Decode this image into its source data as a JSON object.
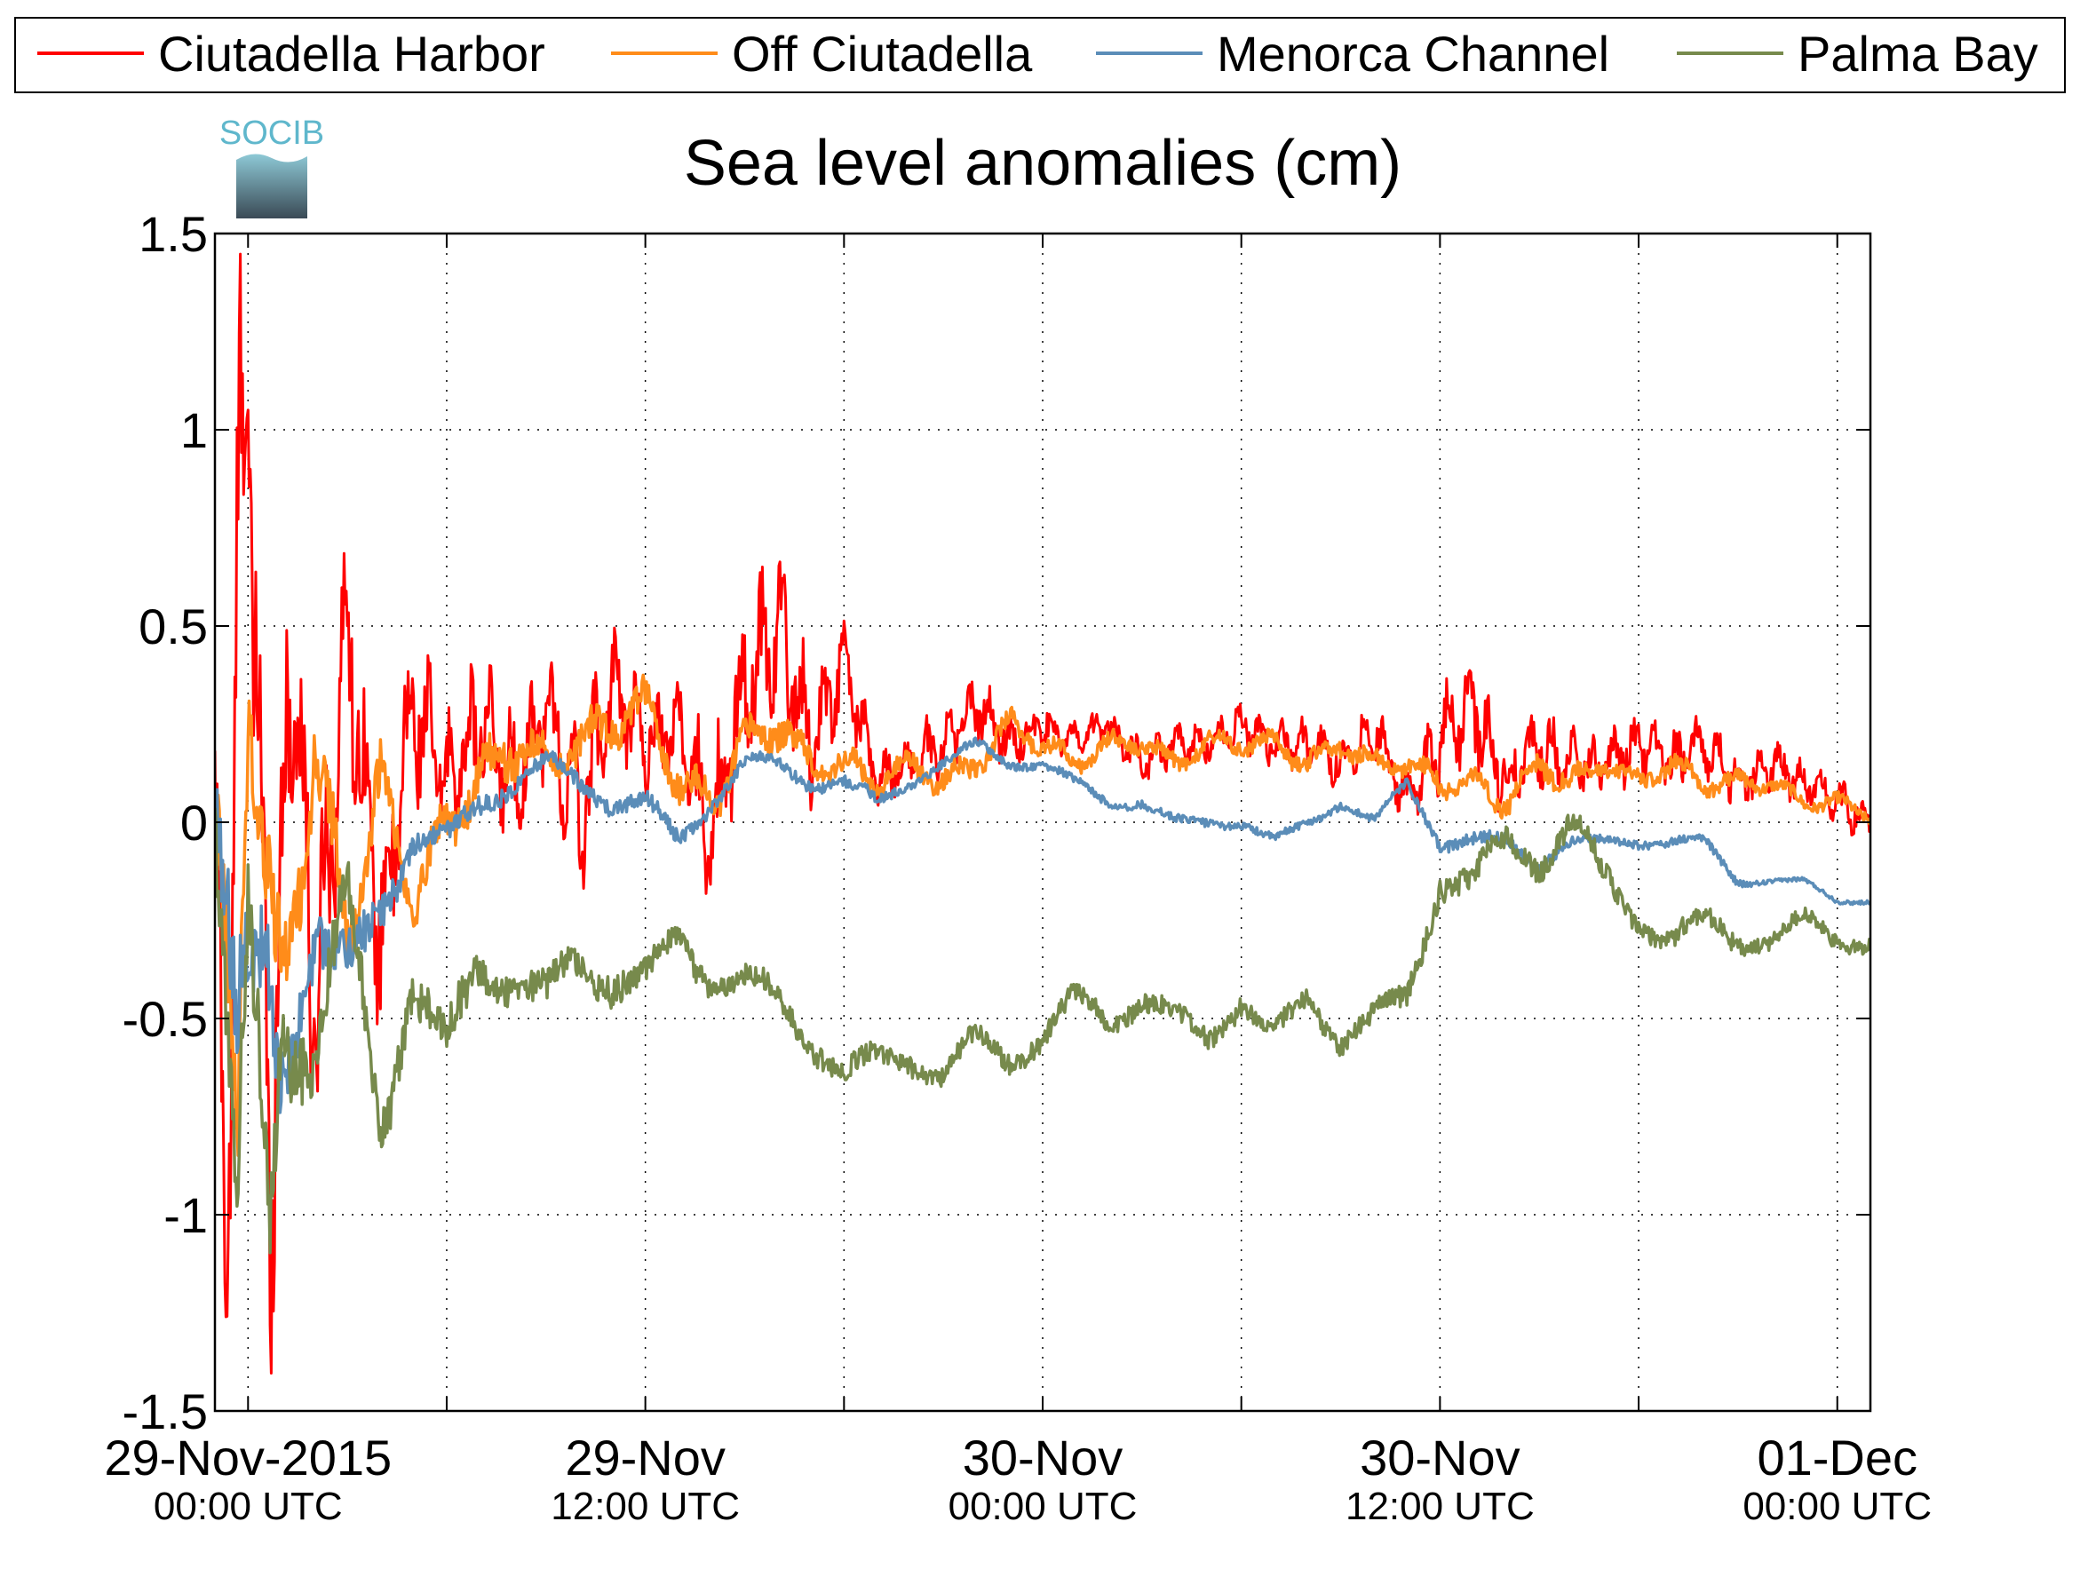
{
  "chart_data": {
    "type": "line",
    "title": "Sea level anomalies (cm)",
    "logo_text": "SOCIB",
    "xlabel": "",
    "ylabel": "",
    "ylim": [
      -1.5,
      1.5
    ],
    "yticks": [
      -1.5,
      -1,
      -0.5,
      0,
      0.5,
      1,
      1.5
    ],
    "ytick_labels": [
      "-1.5",
      "-1",
      "-0.5",
      "0",
      "0.5",
      "1",
      "1.5"
    ],
    "xlim": [
      "2015-11-28T23:00",
      "2015-12-01T01:00"
    ],
    "xticks": [
      "2015-11-29T00:00",
      "2015-11-29T06:00",
      "2015-11-29T12:00",
      "2015-11-29T18:00",
      "2015-11-30T00:00",
      "2015-11-30T06:00",
      "2015-11-30T12:00",
      "2015-11-30T18:00",
      "2015-12-01T00:00"
    ],
    "xtick_labels": [
      {
        "time": "2015-11-29T00:00",
        "line1": "29-Nov-2015",
        "line2": "00:00 UTC"
      },
      {
        "time": "2015-11-29T12:00",
        "line1": "29-Nov",
        "line2": "12:00 UTC"
      },
      {
        "time": "2015-11-30T00:00",
        "line1": "30-Nov",
        "line2": "00:00 UTC"
      },
      {
        "time": "2015-11-30T12:00",
        "line1": "30-Nov",
        "line2": "12:00 UTC"
      },
      {
        "time": "2015-12-01T00:00",
        "line1": "01-Dec",
        "line2": "00:00 UTC"
      }
    ],
    "grid": true,
    "legend_position": "top",
    "series": [
      {
        "name": "Ciutadella Harbor",
        "color": "#ff0000",
        "x": [
          "2015-11-28T23:00",
          "2015-11-28T23:20",
          "2015-11-28T23:40",
          "2015-11-29T00:00",
          "2015-11-29T00:40",
          "2015-11-29T01:20",
          "2015-11-29T02:00",
          "2015-11-29T03:00",
          "2015-11-29T04:00",
          "2015-11-29T05:00",
          "2015-11-29T06:00",
          "2015-11-29T07:00",
          "2015-11-29T08:00",
          "2015-11-29T09:00",
          "2015-11-29T10:00",
          "2015-11-29T11:00",
          "2015-11-29T12:00",
          "2015-11-29T13:00",
          "2015-11-29T14:00",
          "2015-11-29T15:00",
          "2015-11-29T16:00",
          "2015-11-29T17:00",
          "2015-11-29T18:00",
          "2015-11-29T19:00",
          "2015-11-29T20:00",
          "2015-11-29T21:00",
          "2015-11-29T22:00",
          "2015-11-29T23:00",
          "2015-11-30T00:00",
          "2015-11-30T01:00",
          "2015-11-30T02:00",
          "2015-11-30T03:00",
          "2015-11-30T04:00",
          "2015-11-30T05:00",
          "2015-11-30T06:00",
          "2015-11-30T07:00",
          "2015-11-30T08:00",
          "2015-11-30T09:00",
          "2015-11-30T10:00",
          "2015-11-30T11:00",
          "2015-11-30T12:00",
          "2015-11-30T13:00",
          "2015-11-30T14:00",
          "2015-11-30T15:00",
          "2015-11-30T16:00",
          "2015-11-30T17:00",
          "2015-11-30T18:00",
          "2015-11-30T19:00",
          "2015-11-30T20:00",
          "2015-11-30T21:00",
          "2015-11-30T22:00",
          "2015-11-30T23:00",
          "2015-12-01T00:00",
          "2015-12-01T01:00"
        ],
        "y": [
          0.0,
          -1.2,
          0.6,
          1.15,
          -0.9,
          0.5,
          -0.5,
          0.5,
          -0.3,
          0.3,
          0.1,
          0.25,
          0.1,
          0.3,
          0.0,
          0.35,
          0.2,
          0.25,
          -0.05,
          0.35,
          0.5,
          0.2,
          0.4,
          0.1,
          0.15,
          0.2,
          0.3,
          0.2,
          0.25,
          0.2,
          0.25,
          0.15,
          0.2,
          0.2,
          0.25,
          0.2,
          0.2,
          0.15,
          0.25,
          0.05,
          0.2,
          0.3,
          0.1,
          0.2,
          0.15,
          0.15,
          0.2,
          0.15,
          0.2,
          0.1,
          0.15,
          0.1,
          0.05,
          0.0
        ],
        "noise_amplitude": [
          0.5,
          0.6,
          0.8,
          0.7,
          0.6,
          0.5,
          0.45,
          0.35,
          0.3,
          0.25,
          0.2,
          0.2,
          0.2,
          0.2,
          0.25,
          0.2,
          0.15,
          0.15,
          0.25,
          0.25,
          0.25,
          0.2,
          0.15,
          0.08,
          0.1,
          0.1,
          0.1,
          0.08,
          0.07,
          0.06,
          0.06,
          0.06,
          0.06,
          0.06,
          0.07,
          0.07,
          0.07,
          0.08,
          0.1,
          0.1,
          0.15,
          0.15,
          0.12,
          0.12,
          0.1,
          0.1,
          0.1,
          0.1,
          0.1,
          0.08,
          0.08,
          0.07,
          0.07,
          0.06
        ]
      },
      {
        "name": "Off Ciutadella",
        "color": "#ff8c1a",
        "x": [
          "2015-11-28T23:00",
          "2015-11-28T23:40",
          "2015-11-29T00:00",
          "2015-11-29T01:00",
          "2015-11-29T02:00",
          "2015-11-29T03:00",
          "2015-11-29T04:00",
          "2015-11-29T05:00",
          "2015-11-29T06:00",
          "2015-11-29T07:00",
          "2015-11-29T08:00",
          "2015-11-29T09:00",
          "2015-11-29T10:00",
          "2015-11-29T11:00",
          "2015-11-29T12:00",
          "2015-11-29T13:00",
          "2015-11-29T14:00",
          "2015-11-29T15:00",
          "2015-11-29T16:00",
          "2015-11-29T17:00",
          "2015-11-29T18:00",
          "2015-11-29T19:00",
          "2015-11-29T20:00",
          "2015-11-29T21:00",
          "2015-11-29T22:00",
          "2015-11-29T23:00",
          "2015-11-30T00:00",
          "2015-11-30T01:00",
          "2015-11-30T02:00",
          "2015-11-30T03:00",
          "2015-11-30T04:00",
          "2015-11-30T05:00",
          "2015-11-30T06:00",
          "2015-11-30T07:00",
          "2015-11-30T08:00",
          "2015-11-30T09:00",
          "2015-11-30T10:00",
          "2015-11-30T11:00",
          "2015-11-30T12:00",
          "2015-11-30T13:00",
          "2015-11-30T14:00",
          "2015-11-30T15:00",
          "2015-11-30T16:00",
          "2015-11-30T17:00",
          "2015-11-30T18:00",
          "2015-11-30T19:00",
          "2015-11-30T20:00",
          "2015-11-30T21:00",
          "2015-11-30T22:00",
          "2015-11-30T23:00",
          "2015-12-01T00:00",
          "2015-12-01T01:00"
        ],
        "y": [
          0.0,
          -0.9,
          0.4,
          -0.5,
          0.2,
          -0.3,
          0.1,
          -0.2,
          0.0,
          0.1,
          0.2,
          0.15,
          0.2,
          0.25,
          0.3,
          0.1,
          0.05,
          0.2,
          0.25,
          0.15,
          0.15,
          0.1,
          0.15,
          0.1,
          0.15,
          0.25,
          0.2,
          0.15,
          0.2,
          0.2,
          0.15,
          0.2,
          0.2,
          0.2,
          0.15,
          0.2,
          0.15,
          0.15,
          0.1,
          0.1,
          0.05,
          0.15,
          0.1,
          0.15,
          0.1,
          0.15,
          0.1,
          0.1,
          0.1,
          0.05,
          0.05,
          0.02
        ],
        "noise_amplitude": [
          0.3,
          0.3,
          0.3,
          0.25,
          0.2,
          0.15,
          0.12,
          0.1,
          0.1,
          0.1,
          0.1,
          0.08,
          0.08,
          0.08,
          0.08,
          0.08,
          0.08,
          0.08,
          0.08,
          0.06,
          0.06,
          0.05,
          0.05,
          0.05,
          0.05,
          0.05,
          0.04,
          0.04,
          0.04,
          0.04,
          0.04,
          0.04,
          0.04,
          0.04,
          0.04,
          0.04,
          0.04,
          0.04,
          0.05,
          0.05,
          0.05,
          0.05,
          0.05,
          0.04,
          0.04,
          0.04,
          0.04,
          0.04,
          0.03,
          0.03,
          0.03,
          0.03
        ]
      },
      {
        "name": "Menorca Channel",
        "color": "#5b8db8",
        "x": [
          "2015-11-28T23:00",
          "2015-11-28T23:40",
          "2015-11-29T00:30",
          "2015-11-29T01:00",
          "2015-11-29T02:00",
          "2015-11-29T03:00",
          "2015-11-29T04:00",
          "2015-11-29T05:00",
          "2015-11-29T06:00",
          "2015-11-29T07:00",
          "2015-11-29T08:00",
          "2015-11-29T09:00",
          "2015-11-29T10:00",
          "2015-11-29T11:00",
          "2015-11-29T12:00",
          "2015-11-29T13:00",
          "2015-11-29T14:00",
          "2015-11-29T15:00",
          "2015-11-29T16:00",
          "2015-11-29T17:00",
          "2015-11-29T18:00",
          "2015-11-29T19:00",
          "2015-11-29T20:00",
          "2015-11-29T21:00",
          "2015-11-29T22:00",
          "2015-11-29T23:00",
          "2015-11-30T00:00",
          "2015-11-30T01:00",
          "2015-11-30T02:00",
          "2015-11-30T03:00",
          "2015-11-30T04:00",
          "2015-11-30T05:00",
          "2015-11-30T06:00",
          "2015-11-30T07:00",
          "2015-11-30T08:00",
          "2015-11-30T09:00",
          "2015-11-30T10:00",
          "2015-11-30T11:00",
          "2015-11-30T12:00",
          "2015-11-30T13:00",
          "2015-11-30T14:00",
          "2015-11-30T15:00",
          "2015-11-30T16:00",
          "2015-11-30T17:00",
          "2015-11-30T18:00",
          "2015-11-30T19:00",
          "2015-11-30T20:00",
          "2015-11-30T21:00",
          "2015-11-30T22:00",
          "2015-11-30T23:00",
          "2015-12-01T00:00",
          "2015-12-01T01:00"
        ],
        "y": [
          0.0,
          -0.6,
          -0.3,
          -0.6,
          -0.3,
          -0.4,
          -0.2,
          -0.05,
          -0.05,
          0.05,
          0.1,
          0.15,
          0.1,
          0.05,
          0.05,
          -0.05,
          0.05,
          0.15,
          0.15,
          0.1,
          0.1,
          0.05,
          0.1,
          0.15,
          0.2,
          0.15,
          0.15,
          0.1,
          0.05,
          0.05,
          0.0,
          0.0,
          0.0,
          -0.05,
          0.0,
          0.05,
          0.0,
          0.1,
          -0.05,
          -0.05,
          -0.05,
          -0.1,
          -0.05,
          -0.05,
          -0.05,
          -0.05,
          -0.05,
          -0.15,
          -0.15,
          -0.15,
          -0.2,
          -0.2
        ],
        "noise_amplitude": [
          0.25,
          0.3,
          0.25,
          0.2,
          0.15,
          0.12,
          0.1,
          0.06,
          0.05,
          0.05,
          0.04,
          0.04,
          0.04,
          0.04,
          0.04,
          0.04,
          0.03,
          0.03,
          0.03,
          0.03,
          0.03,
          0.03,
          0.02,
          0.02,
          0.02,
          0.02,
          0.02,
          0.02,
          0.02,
          0.02,
          0.02,
          0.02,
          0.02,
          0.02,
          0.02,
          0.02,
          0.02,
          0.02,
          0.03,
          0.03,
          0.03,
          0.03,
          0.02,
          0.02,
          0.02,
          0.02,
          0.02,
          0.02,
          0.01,
          0.01,
          0.01,
          0.01
        ]
      },
      {
        "name": "Palma Bay",
        "color": "#778a4c",
        "x": [
          "2015-11-28T23:00",
          "2015-11-28T23:40",
          "2015-11-29T00:00",
          "2015-11-29T00:40",
          "2015-11-29T01:00",
          "2015-11-29T02:00",
          "2015-11-29T03:00",
          "2015-11-29T04:00",
          "2015-11-29T05:00",
          "2015-11-29T06:00",
          "2015-11-29T07:00",
          "2015-11-29T08:00",
          "2015-11-29T09:00",
          "2015-11-29T10:00",
          "2015-11-29T11:00",
          "2015-11-29T12:00",
          "2015-11-29T13:00",
          "2015-11-29T14:00",
          "2015-11-29T15:00",
          "2015-11-29T16:00",
          "2015-11-29T17:00",
          "2015-11-29T18:00",
          "2015-11-29T19:00",
          "2015-11-29T20:00",
          "2015-11-29T21:00",
          "2015-11-29T22:00",
          "2015-11-29T23:00",
          "2015-11-30T00:00",
          "2015-11-30T01:00",
          "2015-11-30T02:00",
          "2015-11-30T03:00",
          "2015-11-30T04:00",
          "2015-11-30T05:00",
          "2015-11-30T06:00",
          "2015-11-30T07:00",
          "2015-11-30T08:00",
          "2015-11-30T09:00",
          "2015-11-30T10:00",
          "2015-11-30T11:00",
          "2015-11-30T12:00",
          "2015-11-30T13:00",
          "2015-11-30T14:00",
          "2015-11-30T15:00",
          "2015-11-30T16:00",
          "2015-11-30T17:00",
          "2015-11-30T18:00",
          "2015-11-30T19:00",
          "2015-11-30T20:00",
          "2015-11-30T21:00",
          "2015-11-30T22:00",
          "2015-11-30T23:00",
          "2015-12-01T00:00",
          "2015-12-01T01:00"
        ],
        "y": [
          0.0,
          -1.05,
          -0.3,
          -0.95,
          -0.5,
          -0.6,
          -0.2,
          -0.75,
          -0.4,
          -0.6,
          -0.35,
          -0.4,
          -0.45,
          -0.35,
          -0.4,
          -0.4,
          -0.3,
          -0.4,
          -0.4,
          -0.45,
          -0.55,
          -0.65,
          -0.6,
          -0.6,
          -0.65,
          -0.55,
          -0.6,
          -0.55,
          -0.45,
          -0.5,
          -0.45,
          -0.5,
          -0.55,
          -0.45,
          -0.55,
          -0.45,
          -0.55,
          -0.5,
          -0.45,
          -0.15,
          -0.15,
          -0.05,
          -0.1,
          0.0,
          -0.15,
          -0.25,
          -0.3,
          -0.25,
          -0.3,
          -0.3,
          -0.25,
          -0.3,
          -0.3
        ],
        "noise_amplitude": [
          0.2,
          0.25,
          0.25,
          0.25,
          0.2,
          0.15,
          0.15,
          0.15,
          0.12,
          0.12,
          0.1,
          0.08,
          0.08,
          0.08,
          0.08,
          0.07,
          0.07,
          0.06,
          0.06,
          0.06,
          0.06,
          0.06,
          0.05,
          0.05,
          0.05,
          0.05,
          0.05,
          0.05,
          0.05,
          0.05,
          0.05,
          0.05,
          0.05,
          0.05,
          0.05,
          0.05,
          0.05,
          0.05,
          0.06,
          0.06,
          0.06,
          0.06,
          0.06,
          0.06,
          0.06,
          0.05,
          0.05,
          0.05,
          0.05,
          0.04,
          0.04,
          0.04,
          0.04
        ]
      }
    ]
  }
}
